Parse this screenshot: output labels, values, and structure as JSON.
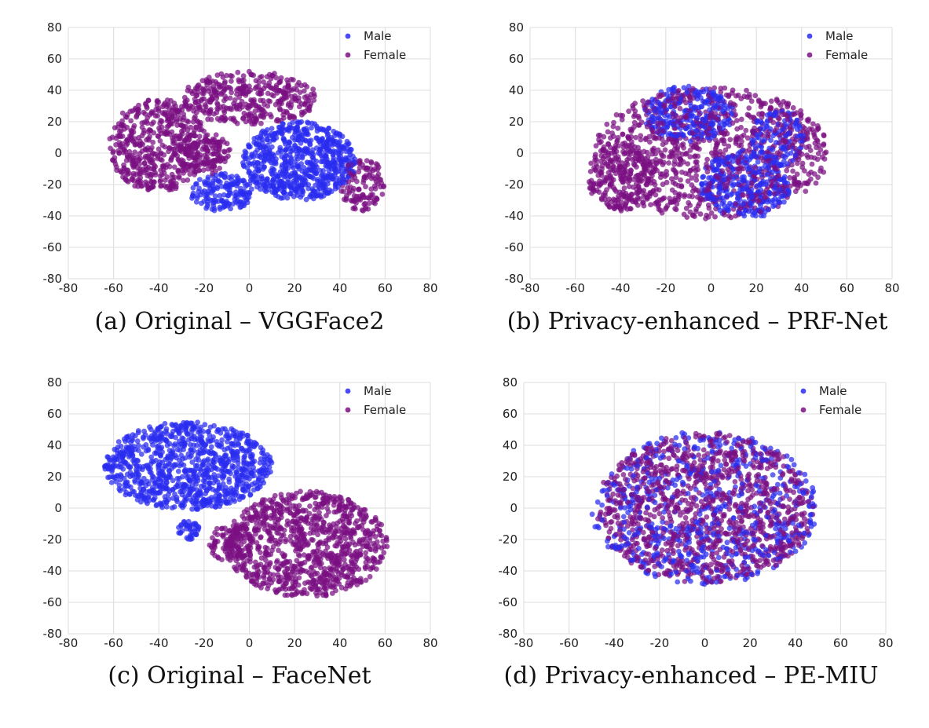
{
  "colors": {
    "male": "#2a2cf0",
    "female": "#7a0f82",
    "grid": "#dcdcdc",
    "axis": "#cccccc"
  },
  "chart_data": [
    {
      "type": "scatter",
      "caption": "(a) Original – VGGFace2",
      "xlim": [
        -80,
        80
      ],
      "ylim": [
        -80,
        80
      ],
      "xticks": [
        -80,
        -60,
        -40,
        -20,
        0,
        20,
        40,
        60,
        80
      ],
      "yticks": [
        80,
        60,
        40,
        20,
        0,
        -20,
        -40,
        -60,
        -80
      ],
      "grid": true,
      "legend_position": "top-right",
      "series": [
        {
          "name": "Male",
          "color": "#2a2cf0",
          "clusters": [
            {
              "cx": 22,
              "cy": -5,
              "rx": 25,
              "ry": 25,
              "n": 700
            },
            {
              "cx": -12,
              "cy": -25,
              "rx": 14,
              "ry": 12,
              "n": 160
            }
          ]
        },
        {
          "name": "Female",
          "color": "#7a0f82",
          "clusters": [
            {
              "cx": -40,
              "cy": 5,
              "rx": 22,
              "ry": 30,
              "n": 480
            },
            {
              "cx": 0,
              "cy": 35,
              "rx": 30,
              "ry": 17,
              "n": 380
            },
            {
              "cx": -20,
              "cy": 0,
              "rx": 12,
              "ry": 14,
              "n": 150
            },
            {
              "cx": 50,
              "cy": -20,
              "rx": 10,
              "ry": 17,
              "n": 120
            }
          ]
        }
      ]
    },
    {
      "type": "scatter",
      "caption": "(b) Privacy-enhanced – PRF-Net",
      "xlim": [
        -80,
        80
      ],
      "ylim": [
        -80,
        80
      ],
      "xticks": [
        -80,
        -60,
        -40,
        -20,
        0,
        20,
        40,
        60,
        80
      ],
      "yticks": [
        80,
        60,
        40,
        20,
        0,
        -20,
        -40,
        -60,
        -80
      ],
      "grid": true,
      "legend_position": "top-right",
      "series": [
        {
          "name": "Male",
          "color": "#2a2cf0",
          "clusters": [
            {
              "cx": -10,
              "cy": 25,
              "rx": 20,
              "ry": 18,
              "n": 260
            },
            {
              "cx": 15,
              "cy": -20,
              "rx": 20,
              "ry": 22,
              "n": 320
            },
            {
              "cx": 30,
              "cy": 10,
              "rx": 12,
              "ry": 18,
              "n": 120
            }
          ]
        },
        {
          "name": "Female",
          "color": "#7a0f82",
          "clusters": [
            {
              "cx": 0,
              "cy": 0,
              "rx": 52,
              "ry": 42,
              "n": 1000
            },
            {
              "cx": -40,
              "cy": -15,
              "rx": 15,
              "ry": 22,
              "n": 200
            }
          ]
        }
      ]
    },
    {
      "type": "scatter",
      "caption": "(c) Original – FaceNet",
      "xlim": [
        -80,
        80
      ],
      "ylim": [
        -80,
        80
      ],
      "xticks": [
        -80,
        -60,
        -40,
        -20,
        0,
        20,
        40,
        60,
        80
      ],
      "yticks": [
        80,
        60,
        40,
        20,
        0,
        -20,
        -40,
        -60,
        -80
      ],
      "grid": true,
      "legend_position": "top-right",
      "series": [
        {
          "name": "Male",
          "color": "#2a2cf0",
          "clusters": [
            {
              "cx": -27,
              "cy": 27,
              "rx": 37,
              "ry": 28,
              "n": 950
            },
            {
              "cx": -27,
              "cy": -14,
              "rx": 5,
              "ry": 6,
              "n": 40
            }
          ]
        },
        {
          "name": "Female",
          "color": "#7a0f82",
          "clusters": [
            {
              "cx": 25,
              "cy": -23,
              "rx": 36,
              "ry": 34,
              "n": 1000
            },
            {
              "cx": -8,
              "cy": -22,
              "rx": 10,
              "ry": 12,
              "n": 80
            }
          ]
        }
      ]
    },
    {
      "type": "scatter",
      "caption": "(d) Privacy-enhanced – PE-MIU",
      "xlim": [
        -80,
        80
      ],
      "ylim": [
        -80,
        80
      ],
      "xticks": [
        -80,
        -60,
        -40,
        -20,
        0,
        20,
        40,
        60,
        80
      ],
      "yticks": [
        80,
        60,
        40,
        20,
        0,
        -20,
        -40,
        -60,
        -80
      ],
      "grid": true,
      "legend_position": "top-right",
      "series": [
        {
          "name": "Male",
          "color": "#2a2cf0",
          "clusters": [
            {
              "cx": 0,
              "cy": 0,
              "rx": 50,
              "ry": 49,
              "n": 600
            }
          ]
        },
        {
          "name": "Female",
          "color": "#7a0f82",
          "clusters": [
            {
              "cx": 0,
              "cy": 0,
              "rx": 48,
              "ry": 48,
              "n": 1100
            }
          ]
        }
      ]
    }
  ]
}
